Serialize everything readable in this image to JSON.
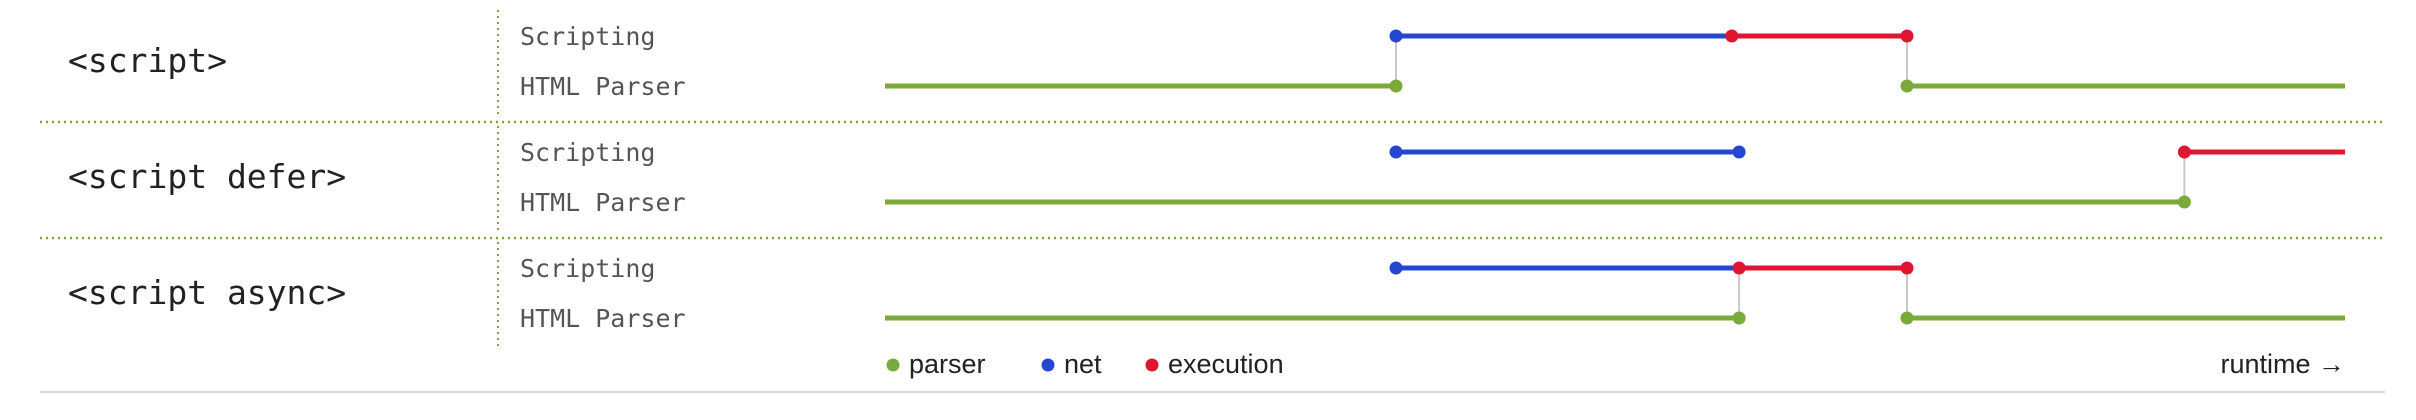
{
  "colors": {
    "parser": "#7aab3a",
    "net": "#2547cf",
    "execution": "#e01530",
    "connector": "#c8c8c8",
    "separator": "#7aab3a",
    "text": "#222222",
    "track_text": "#555555"
  },
  "rows": [
    {
      "label": "<script>",
      "scripting_label": "Scripting",
      "parser_label": "HTML Parser",
      "parser_segments": [
        [
          0,
          35
        ],
        [
          70,
          100
        ]
      ],
      "net": [
        35,
        58
      ],
      "exec": [
        58,
        70
      ],
      "connectors": [
        35,
        70
      ]
    },
    {
      "label": "<script defer>",
      "scripting_label": "Scripting",
      "parser_label": "HTML Parser",
      "parser_segments": [
        [
          0,
          89
        ]
      ],
      "net": [
        35,
        58.5
      ],
      "exec": [
        89,
        100
      ],
      "connectors": [
        89
      ]
    },
    {
      "label": "<script async>",
      "scripting_label": "Scripting",
      "parser_label": "HTML Parser",
      "parser_segments": [
        [
          0,
          58.5
        ],
        [
          70,
          100
        ]
      ],
      "net": [
        35,
        58.5
      ],
      "exec": [
        58.5,
        70
      ],
      "connectors": [
        58.5,
        70
      ]
    }
  ],
  "legend": [
    {
      "label": "parser",
      "key": "parser"
    },
    {
      "label": "net",
      "key": "net"
    },
    {
      "label": "execution",
      "key": "execution"
    }
  ],
  "axis_label": "runtime →"
}
